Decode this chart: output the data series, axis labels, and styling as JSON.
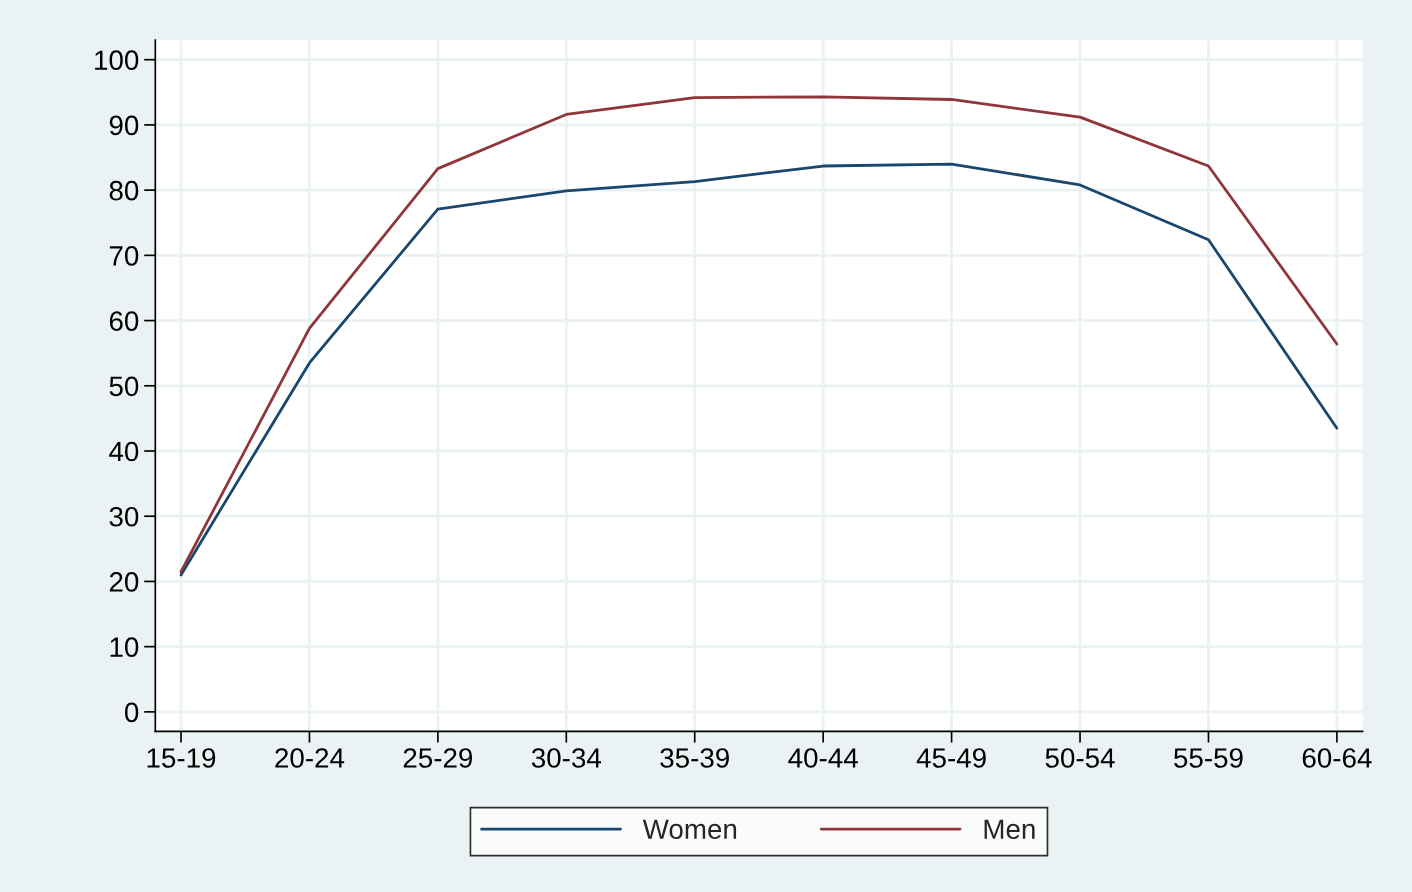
{
  "chart_data": {
    "type": "line",
    "categories": [
      "15-19",
      "20-24",
      "25-29",
      "30-34",
      "35-39",
      "40-44",
      "45-49",
      "50-54",
      "55-59",
      "60-64"
    ],
    "series": [
      {
        "name": "Women",
        "color": "#1a476f",
        "values": [
          21.0,
          53.5,
          77.1,
          79.9,
          81.3,
          83.7,
          84.0,
          80.8,
          72.4,
          43.5
        ]
      },
      {
        "name": "Men",
        "color": "#90353b",
        "values": [
          21.5,
          58.8,
          83.3,
          91.6,
          94.2,
          94.3,
          93.9,
          91.2,
          83.7,
          56.4
        ]
      }
    ],
    "ylim": [
      -3,
      103
    ],
    "yticks": [
      0,
      10,
      20,
      30,
      40,
      50,
      60,
      70,
      80,
      90,
      100
    ],
    "grid": true,
    "legend": "bottom",
    "marker": "none",
    "line_style": "solid"
  }
}
